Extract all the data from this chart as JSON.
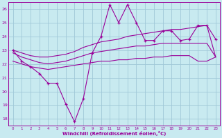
{
  "x": [
    0,
    1,
    2,
    3,
    4,
    5,
    6,
    7,
    8,
    9,
    10,
    11,
    12,
    13,
    14,
    15,
    16,
    17,
    18,
    19,
    20,
    21,
    22,
    23
  ],
  "line_main": [
    23.0,
    22.2,
    21.8,
    21.3,
    20.6,
    20.6,
    19.1,
    17.8,
    19.5,
    22.8,
    24.0,
    26.3,
    25.0,
    26.3,
    25.0,
    23.7,
    23.7,
    24.4,
    24.4,
    23.7,
    23.8,
    24.8,
    24.8,
    23.8
  ],
  "line_upper": [
    23.0,
    22.8,
    22.6,
    22.5,
    22.5,
    22.6,
    22.7,
    22.9,
    23.2,
    23.4,
    23.6,
    23.7,
    23.8,
    24.0,
    24.1,
    24.2,
    24.3,
    24.4,
    24.5,
    24.5,
    24.6,
    24.7,
    24.8,
    22.5
  ],
  "line_mid": [
    22.8,
    22.5,
    22.3,
    22.1,
    22.0,
    22.1,
    22.2,
    22.4,
    22.6,
    22.8,
    22.9,
    23.0,
    23.1,
    23.2,
    23.3,
    23.3,
    23.4,
    23.5,
    23.5,
    23.5,
    23.5,
    23.5,
    23.5,
    22.5
  ],
  "line_lower": [
    22.2,
    22.0,
    21.8,
    21.7,
    21.6,
    21.7,
    21.8,
    21.9,
    22.0,
    22.1,
    22.2,
    22.2,
    22.3,
    22.3,
    22.4,
    22.4,
    22.5,
    22.5,
    22.6,
    22.6,
    22.6,
    22.2,
    22.2,
    22.5
  ],
  "bg_color": "#c8eaf0",
  "grid_color": "#a0c8d8",
  "line_color": "#990099",
  "xlabel": "Windchill (Refroidissement éolien,°C)",
  "figsize": [
    3.2,
    2.0
  ],
  "dpi": 100,
  "xlim": [
    -0.5,
    23.5
  ],
  "ylim": [
    17.5,
    26.5
  ],
  "yticks": [
    18,
    19,
    20,
    21,
    22,
    23,
    24,
    25,
    26
  ]
}
